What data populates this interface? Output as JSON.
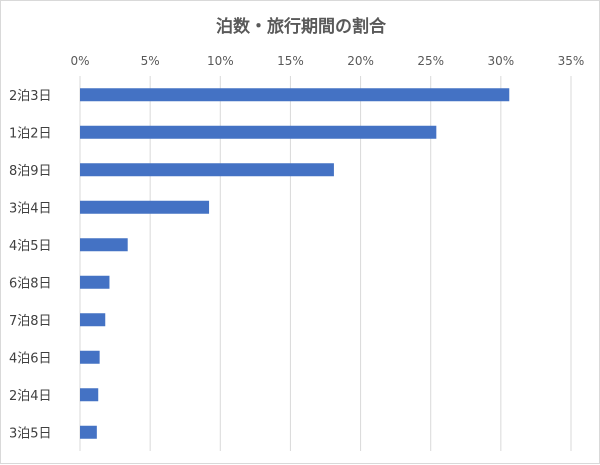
{
  "chart_data": {
    "type": "bar",
    "orientation": "horizontal",
    "title": "泊数・旅行期間の割合",
    "categories": [
      "2泊3日",
      "1泊2日",
      "8泊9日",
      "3泊4日",
      "4泊5日",
      "6泊8日",
      "7泊8日",
      "4泊6日",
      "2泊4日",
      "3泊5日"
    ],
    "values": [
      30.6,
      25.4,
      18.1,
      9.2,
      3.4,
      2.1,
      1.8,
      1.4,
      1.3,
      1.2
    ],
    "xlim": [
      0,
      35
    ],
    "x_ticks": [
      0,
      5,
      10,
      15,
      20,
      25,
      30,
      35
    ],
    "x_tick_labels": [
      "0%",
      "5%",
      "10%",
      "15%",
      "20%",
      "25%",
      "30%",
      "35%"
    ],
    "x_axis_position": "top",
    "grid": true,
    "bar_color": "#4472c4"
  }
}
